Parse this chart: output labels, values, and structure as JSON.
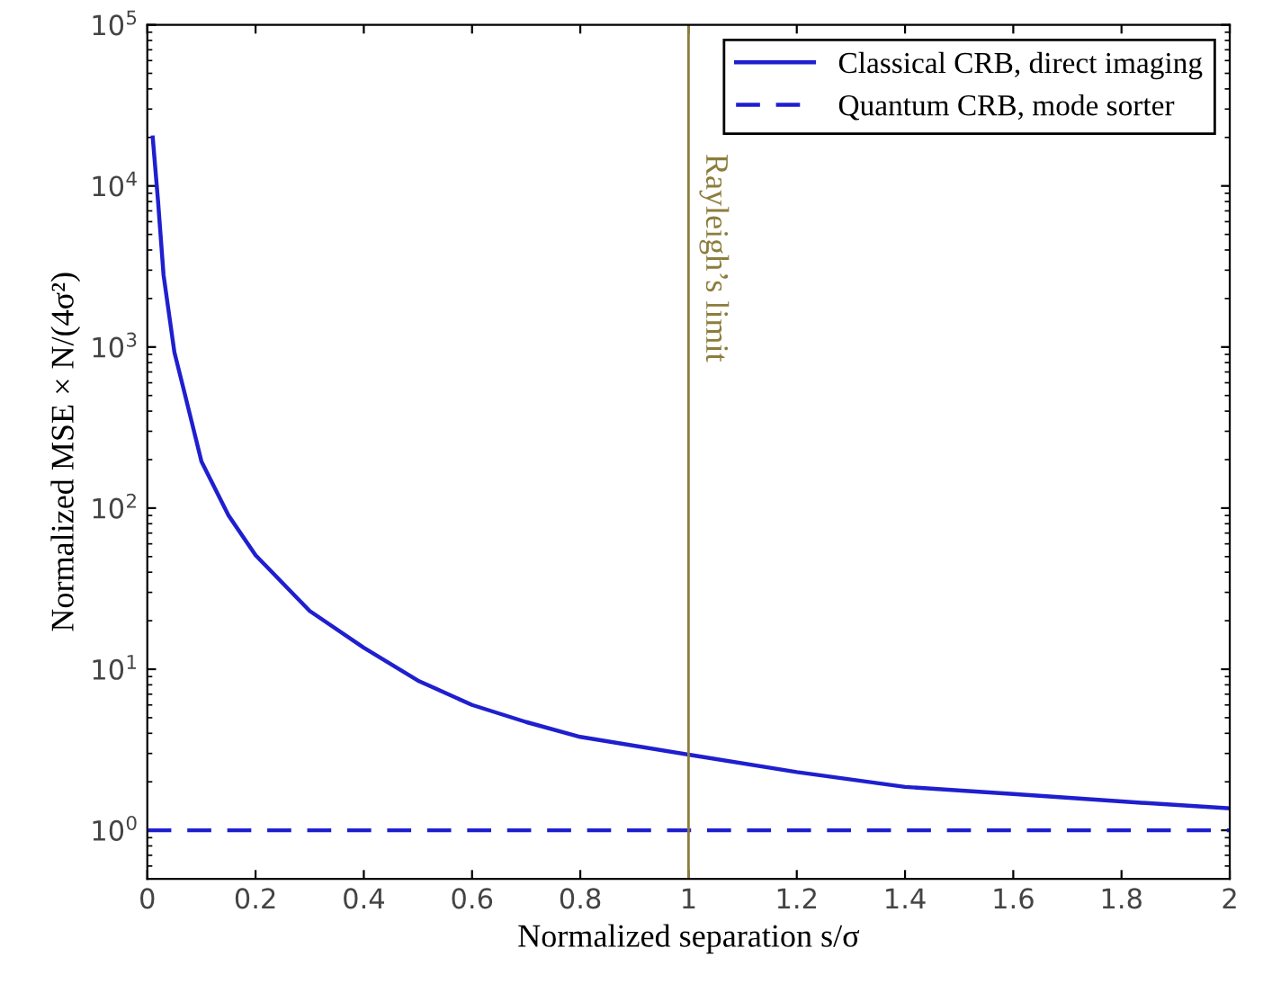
{
  "chart_data": {
    "type": "line",
    "xlabel": "Normalized separation s/σ",
    "ylabel": "Normalized MSE × N/(4σ²)",
    "log": "y",
    "xlim": [
      0,
      2
    ],
    "ylim": [
      0.5,
      100000
    ],
    "xticks": [
      0,
      0.2,
      0.4,
      0.6,
      0.8,
      1,
      1.2,
      1.4,
      1.6,
      1.8,
      2
    ],
    "yticks": [
      {
        "value": 1,
        "label": "10$^{0}$"
      },
      {
        "value": 10,
        "label": "10$^{1}$"
      },
      {
        "value": 100,
        "label": "10$^{2}$"
      },
      {
        "value": 1000,
        "label": "10$^{3}$"
      },
      {
        "value": 10000,
        "label": "10$^{4}$"
      },
      {
        "value": 100000,
        "label": "10$^{5}$"
      }
    ],
    "grid": false,
    "legend": "top right",
    "marker": "none",
    "series": [
      {
        "name": "Classical CRB, direct imaging",
        "color": "#1f1fcf",
        "line_style": "solid",
        "x": [
          0.01,
          0.02,
          0.03,
          0.05,
          0.07,
          0.1,
          0.15,
          0.2,
          0.3,
          0.4,
          0.5,
          0.6,
          0.7,
          0.8,
          1,
          1.2,
          1.4,
          1.6,
          1.8,
          2
        ],
        "values": [
          20000,
          7900,
          2800,
          930,
          500,
          195,
          90,
          51,
          23,
          13.6,
          8.5,
          6.0,
          4.7,
          3.8,
          2.95,
          2.3,
          1.86,
          1.68,
          1.51,
          1.37
        ]
      },
      {
        "name": "Quantum CRB, mode sorter",
        "color": "#1f1fcf",
        "line_style": "dashed",
        "x": [
          0,
          2
        ],
        "values": [
          1,
          1
        ]
      }
    ],
    "ref_lines": [
      {
        "axis": "x",
        "value": 1,
        "label": "Rayleigh’s limit",
        "color": "#8c7d3c",
        "line_style": "solid"
      }
    ]
  }
}
